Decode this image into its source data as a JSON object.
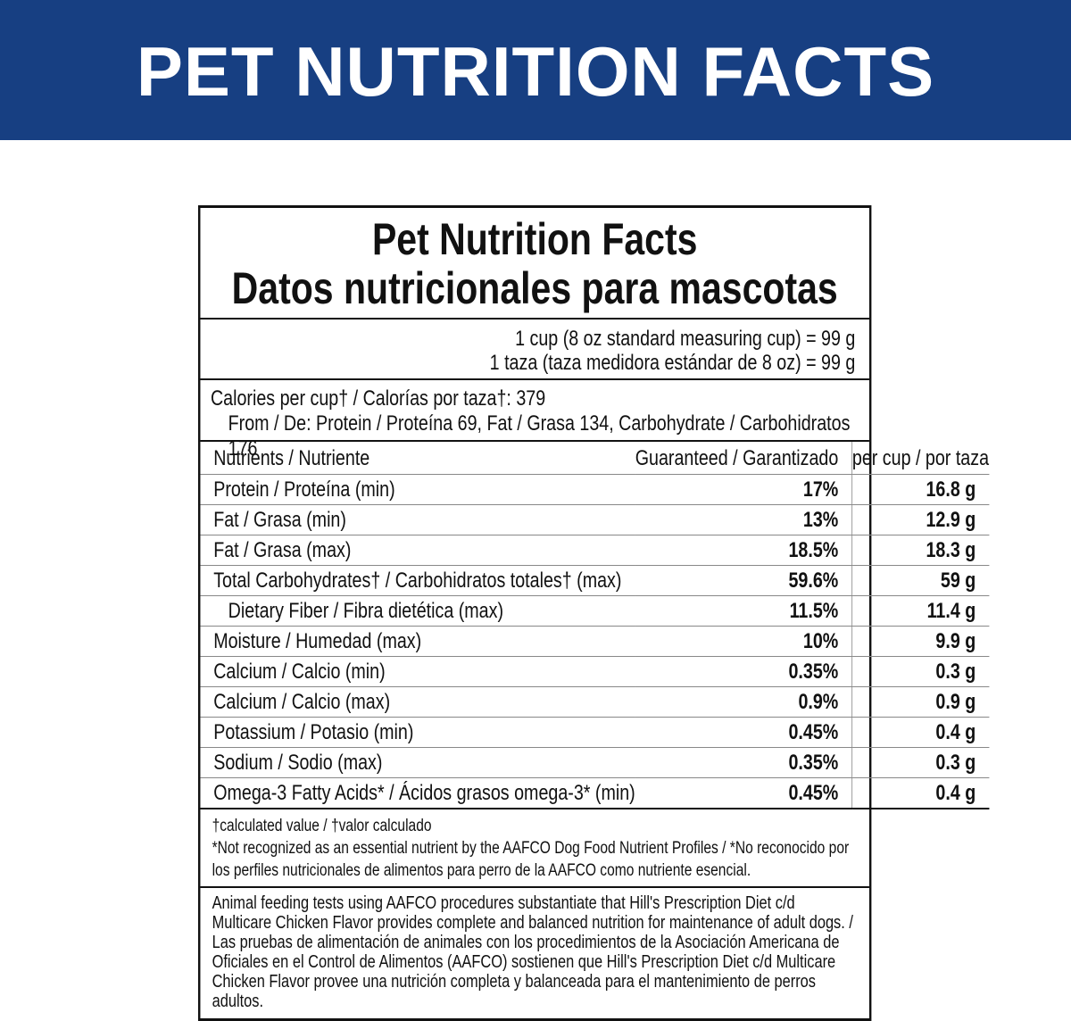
{
  "header": {
    "title": "PET NUTRITION FACTS"
  },
  "label": {
    "title": [
      "Pet Nutrition Facts",
      "Datos nutricionales para mascotas"
    ],
    "serving": [
      "1 cup (8 oz standard measuring cup) = 99 g",
      "1 taza (taza medidora estándar de 8 oz) = 99 g"
    ],
    "calories": "Calories per cup† / Calorías por taza†: 379",
    "calories_from": "From / De:  Protein / Proteína 69, Fat / Grasa 134, Carbohydrate / Carbohidratos 176",
    "table": {
      "columns": [
        "Nutrients / Nutriente",
        "Guaranteed / Garantizado",
        "per cup / por taza"
      ],
      "rows": [
        [
          "Protein / Proteína (min)",
          "17%",
          "16.8 g"
        ],
        [
          "Fat / Grasa (min)",
          "13%",
          "12.9 g"
        ],
        [
          "Fat / Grasa (max)",
          "18.5%",
          "18.3 g"
        ],
        [
          "Total Carbohydrates† / Carbohidratos totales† (max)",
          "59.6%",
          "59 g"
        ],
        [
          "Dietary Fiber / Fibra dietética (max)",
          "11.5%",
          "11.4 g"
        ],
        [
          "Moisture / Humedad (max)",
          "10%",
          "9.9 g"
        ],
        [
          "Calcium / Calcio (min)",
          "0.35%",
          "0.3 g"
        ],
        [
          "Calcium / Calcio (max)",
          "0.9%",
          "0.9 g"
        ],
        [
          "Potassium / Potasio (min)",
          "0.45%",
          "0.4 g"
        ],
        [
          "Sodium / Sodio (max)",
          "0.35%",
          "0.3 g"
        ],
        [
          "Omega-3 Fatty Acids* / Ácidos grasos omega-3* (min)",
          "0.45%",
          "0.4 g"
        ]
      ]
    },
    "footnotes": [
      "†calculated value / †valor calculado",
      "*Not recognized as an essential nutrient by the AAFCO Dog Food Nutrient Profiles / *No reconocido por los perfiles nutricionales de alimentos para perro de la AAFCO como nutriente esencial."
    ],
    "statement": "Animal feeding tests using AAFCO procedures substantiate that Hill's Prescription Diet c/d Multicare Chicken Flavor provides complete and balanced nutrition for maintenance of adult dogs. / Las pruebas de alimentación de animales con los procedimientos de la Asociación Americana de Oficiales en el Control de Alimentos (AAFCO) sostienen que Hill's Prescription Diet c/d Multicare Chicken Flavor provee una nutrición completa y balanceada para el mantenimiento de perros adultos."
  }
}
